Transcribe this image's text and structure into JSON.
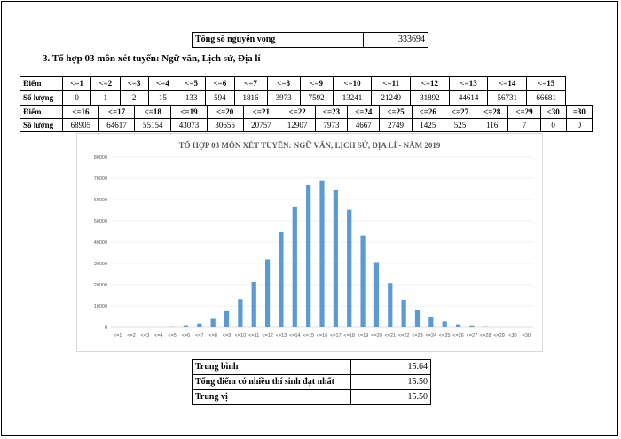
{
  "total_row": {
    "label": "Tổng số nguyện vọng",
    "value": "333694"
  },
  "section_heading": "3. Tổ hợp 03 môn xét tuyển: Ngữ văn, Lịch sử, Địa lí",
  "row_labels": {
    "score": "Điểm",
    "count": "Số lượng"
  },
  "table1": {
    "headers": [
      "<=1",
      "<=2",
      "<=3",
      "<=4",
      "<=5",
      "<=6",
      "<=7",
      "<=8",
      "<=9",
      "<=10",
      "<=11",
      "<=12",
      "<=13",
      "<=14",
      "<=15"
    ],
    "counts": [
      "0",
      "1",
      "2",
      "15",
      "133",
      "594",
      "1816",
      "3973",
      "7592",
      "13241",
      "21249",
      "31892",
      "44614",
      "56731",
      "66681"
    ]
  },
  "table2": {
    "headers": [
      "<=16",
      "<=17",
      "<=18",
      "<=19",
      "<=20",
      "<=21",
      "<=22",
      "<=23",
      "<=24",
      "<=25",
      "<=26",
      "<=27",
      "<=28",
      "<=29",
      "<30",
      "=30"
    ],
    "counts": [
      "68905",
      "64617",
      "55154",
      "43073",
      "30655",
      "20757",
      "12907",
      "7973",
      "4667",
      "2749",
      "1425",
      "525",
      "116",
      "7",
      "0",
      "0"
    ]
  },
  "chart_data": {
    "type": "bar",
    "title": "TỔ HỢP 03 MÔN XÉT TUYỂN: NGỮ VĂN, LỊCH SỬ, ĐỊA LÍ - NĂM 2019",
    "categories": [
      "<=1",
      "<=2",
      "<=3",
      "<=4",
      "<=5",
      "<=6",
      "<=7",
      "<=8",
      "<=9",
      "<=10",
      "<=11",
      "<=12",
      "<=13",
      "<=14",
      "<=15",
      "<=16",
      "<=17",
      "<=18",
      "<=19",
      "<=20",
      "<=21",
      "<=22",
      "<=23",
      "<=24",
      "<=25",
      "<=26",
      "<=27",
      "<=28",
      "<=29",
      "<30",
      "=30"
    ],
    "values": [
      0,
      1,
      2,
      15,
      133,
      594,
      1816,
      3973,
      7592,
      13241,
      21249,
      31892,
      44614,
      56731,
      66681,
      68905,
      64617,
      55154,
      43073,
      30655,
      20757,
      12907,
      7973,
      4667,
      2749,
      1425,
      525,
      116,
      7,
      0,
      0
    ],
    "ylim": [
      0,
      80000
    ],
    "yticks": [
      "0",
      "10000",
      "20000",
      "30000",
      "40000",
      "50000",
      "60000",
      "70000",
      "80000"
    ],
    "xlabel": "",
    "ylabel": "",
    "grid": true,
    "bar_color": "#5b9bd5"
  },
  "stats": [
    {
      "label": "Trung bình",
      "value": "15.64"
    },
    {
      "label": "Tổng điểm có nhiều thí sinh đạt nhất",
      "value": "15.50"
    },
    {
      "label": "Trung vị",
      "value": "15.50"
    }
  ]
}
